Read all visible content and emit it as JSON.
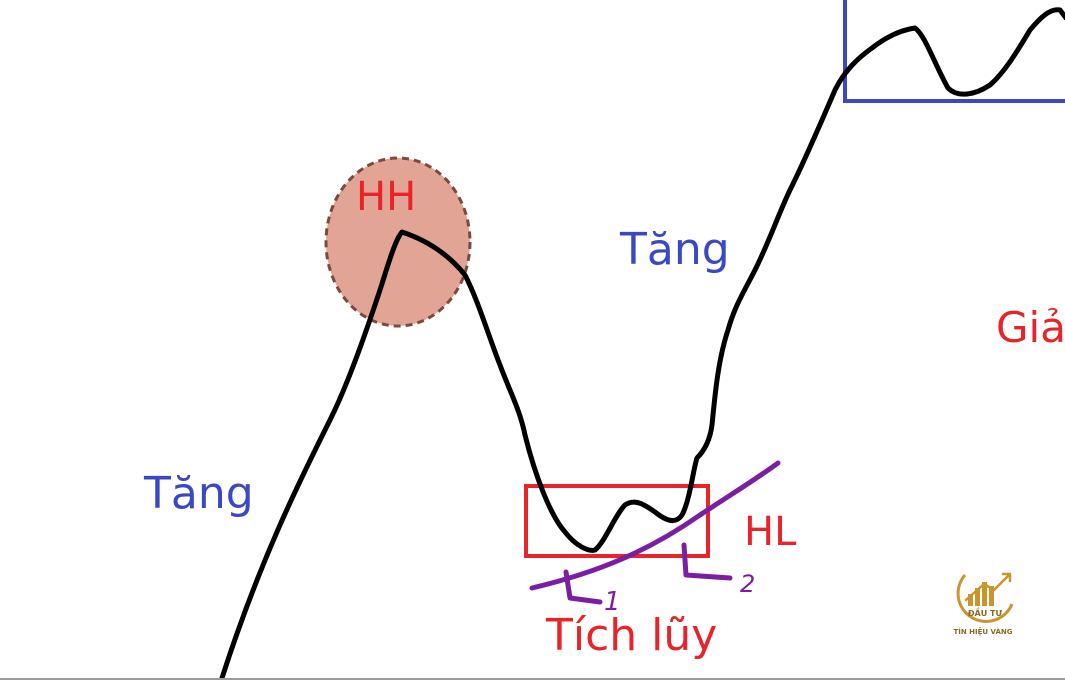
{
  "labels": {
    "hh": "HH",
    "tang_left": "Tăng",
    "tang_mid": "Tăng",
    "giam": "Giả",
    "hl": "HL",
    "tich_luy": "Tích lũy",
    "mark_1": "1",
    "mark_2": "2"
  },
  "logo": {
    "brand_top": "ĐẦU TƯ",
    "brand_bottom": "TÍN HIỆU VÀNG"
  },
  "colors": {
    "price_line": "#000000",
    "up_text": "#3b48c4",
    "down_text": "#e8242a",
    "hh_fill": "#e2a595",
    "hh_stroke": "#7a4a3c",
    "accumulation_box": "#e8242a",
    "top_box": "#3b48c4",
    "trendline": "#7b1fa2",
    "logo_gold": "#c9962e"
  }
}
